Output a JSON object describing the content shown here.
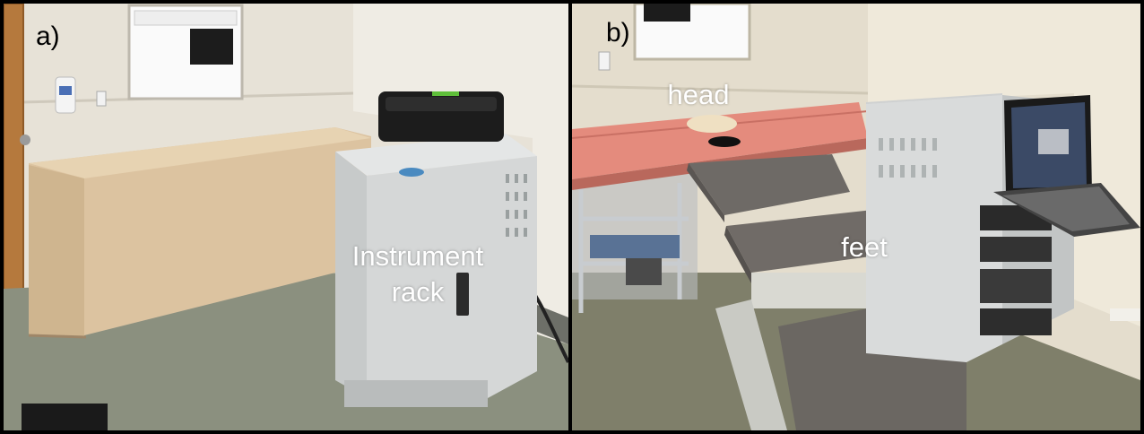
{
  "panels": [
    {
      "label": "a)",
      "annotations": {
        "line1": "Instrument",
        "line2": "rack"
      }
    },
    {
      "label": "b)",
      "annotations": {
        "head": "head",
        "feet": "feet"
      }
    }
  ],
  "colors": {
    "wall": "#e6e1d6",
    "floor": "#8a8f80",
    "bed_cover": "#dcc4a0",
    "rack": "#d6d8d8",
    "table_pink": "#e58a7c",
    "table_grey": "#6e6a66",
    "case": "#1c1c1c"
  }
}
